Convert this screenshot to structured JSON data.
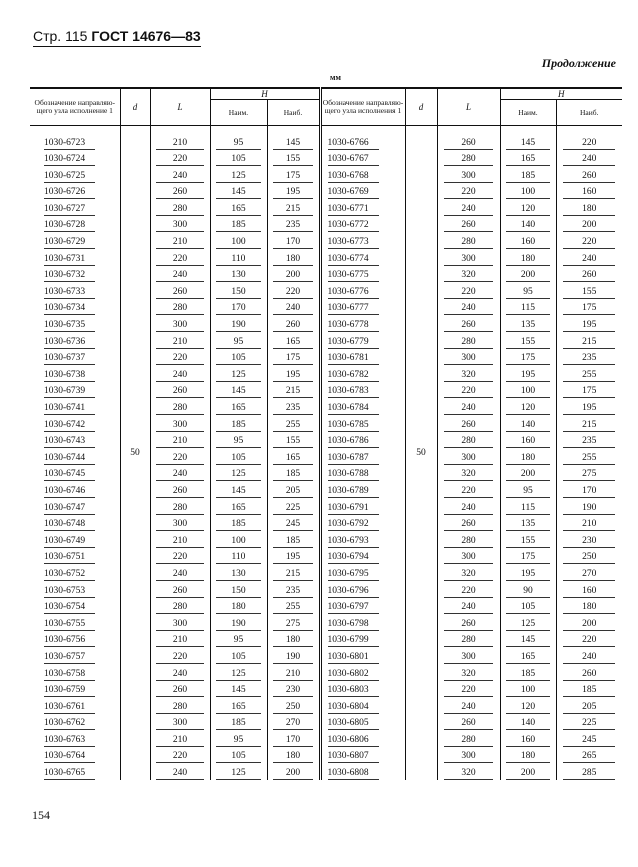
{
  "header": {
    "page": "Стр. 115",
    "standard": "ГОСТ 14676—83"
  },
  "continuation": "Продолжение",
  "unit": "мм",
  "columns": {
    "designation": "Обозначение направляю-щего узла исполнение 1",
    "designation_right": "Обозначение направляю-щего узла исполнения 1",
    "d": "d",
    "L": "L",
    "H": "H",
    "H_min": "Наим.",
    "H_max": "Наиб."
  },
  "d_value": "50",
  "left_rows": [
    [
      "1030-6723",
      "210",
      "95",
      "145"
    ],
    [
      "1030-6724",
      "220",
      "105",
      "155"
    ],
    [
      "1030-6725",
      "240",
      "125",
      "175"
    ],
    [
      "1030-6726",
      "260",
      "145",
      "195"
    ],
    [
      "1030-6727",
      "280",
      "165",
      "215"
    ],
    [
      "1030-6728",
      "300",
      "185",
      "235"
    ],
    [
      "1030-6729",
      "210",
      "100",
      "170"
    ],
    [
      "1030-6731",
      "220",
      "110",
      "180"
    ],
    [
      "1030-6732",
      "240",
      "130",
      "200"
    ],
    [
      "1030-6733",
      "260",
      "150",
      "220"
    ],
    [
      "1030-6734",
      "280",
      "170",
      "240"
    ],
    [
      "1030-6735",
      "300",
      "190",
      "260"
    ],
    [
      "1030-6736",
      "210",
      "95",
      "165"
    ],
    [
      "1030-6737",
      "220",
      "105",
      "175"
    ],
    [
      "1030-6738",
      "240",
      "125",
      "195"
    ],
    [
      "1030-6739",
      "260",
      "145",
      "215"
    ],
    [
      "1030-6741",
      "280",
      "165",
      "235"
    ],
    [
      "1030-6742",
      "300",
      "185",
      "255"
    ],
    [
      "1030-6743",
      "210",
      "95",
      "155"
    ],
    [
      "1030-6744",
      "220",
      "105",
      "165"
    ],
    [
      "1030-6745",
      "240",
      "125",
      "185"
    ],
    [
      "1030-6746",
      "260",
      "145",
      "205"
    ],
    [
      "1030-6747",
      "280",
      "165",
      "225"
    ],
    [
      "1030-6748",
      "300",
      "185",
      "245"
    ],
    [
      "1030-6749",
      "210",
      "100",
      "185"
    ],
    [
      "1030-6751",
      "220",
      "110",
      "195"
    ],
    [
      "1030-6752",
      "240",
      "130",
      "215"
    ],
    [
      "1030-6753",
      "260",
      "150",
      "235"
    ],
    [
      "1030-6754",
      "280",
      "180",
      "255"
    ],
    [
      "1030-6755",
      "300",
      "190",
      "275"
    ],
    [
      "1030-6756",
      "210",
      "95",
      "180"
    ],
    [
      "1030-6757",
      "220",
      "105",
      "190"
    ],
    [
      "1030-6758",
      "240",
      "125",
      "210"
    ],
    [
      "1030-6759",
      "260",
      "145",
      "230"
    ],
    [
      "1030-6761",
      "280",
      "165",
      "250"
    ],
    [
      "1030-6762",
      "300",
      "185",
      "270"
    ],
    [
      "1030-6763",
      "210",
      "95",
      "170"
    ],
    [
      "1030-6764",
      "220",
      "105",
      "180"
    ],
    [
      "1030-6765",
      "240",
      "125",
      "200"
    ]
  ],
  "right_rows": [
    [
      "1030-6766",
      "260",
      "145",
      "220"
    ],
    [
      "1030-6767",
      "280",
      "165",
      "240"
    ],
    [
      "1030-6768",
      "300",
      "185",
      "260"
    ],
    [
      "1030-6769",
      "220",
      "100",
      "160"
    ],
    [
      "1030-6771",
      "240",
      "120",
      "180"
    ],
    [
      "1030-6772",
      "260",
      "140",
      "200"
    ],
    [
      "1030-6773",
      "280",
      "160",
      "220"
    ],
    [
      "1030-6774",
      "300",
      "180",
      "240"
    ],
    [
      "1030-6775",
      "320",
      "200",
      "260"
    ],
    [
      "1030-6776",
      "220",
      "95",
      "155"
    ],
    [
      "1030-6777",
      "240",
      "115",
      "175"
    ],
    [
      "1030-6778",
      "260",
      "135",
      "195"
    ],
    [
      "1030-6779",
      "280",
      "155",
      "215"
    ],
    [
      "1030-6781",
      "300",
      "175",
      "235"
    ],
    [
      "1030-6782",
      "320",
      "195",
      "255"
    ],
    [
      "1030-6783",
      "220",
      "100",
      "175"
    ],
    [
      "1030-6784",
      "240",
      "120",
      "195"
    ],
    [
      "1030-6785",
      "260",
      "140",
      "215"
    ],
    [
      "1030-6786",
      "280",
      "160",
      "235"
    ],
    [
      "1030-6787",
      "300",
      "180",
      "255"
    ],
    [
      "1030-6788",
      "320",
      "200",
      "275"
    ],
    [
      "1030-6789",
      "220",
      "95",
      "170"
    ],
    [
      "1030-6791",
      "240",
      "115",
      "190"
    ],
    [
      "1030-6792",
      "260",
      "135",
      "210"
    ],
    [
      "1030-6793",
      "280",
      "155",
      "230"
    ],
    [
      "1030-6794",
      "300",
      "175",
      "250"
    ],
    [
      "1030-6795",
      "320",
      "195",
      "270"
    ],
    [
      "1030-6796",
      "220",
      "90",
      "160"
    ],
    [
      "1030-6797",
      "240",
      "105",
      "180"
    ],
    [
      "1030-6798",
      "260",
      "125",
      "200"
    ],
    [
      "1030-6799",
      "280",
      "145",
      "220"
    ],
    [
      "1030-6801",
      "300",
      "165",
      "240"
    ],
    [
      "1030-6802",
      "320",
      "185",
      "260"
    ],
    [
      "1030-6803",
      "220",
      "100",
      "185"
    ],
    [
      "1030-6804",
      "240",
      "120",
      "205"
    ],
    [
      "1030-6805",
      "260",
      "140",
      "225"
    ],
    [
      "1030-6806",
      "280",
      "160",
      "245"
    ],
    [
      "1030-6807",
      "300",
      "180",
      "265"
    ],
    [
      "1030-6808",
      "320",
      "200",
      "285"
    ]
  ],
  "page_number": "154"
}
